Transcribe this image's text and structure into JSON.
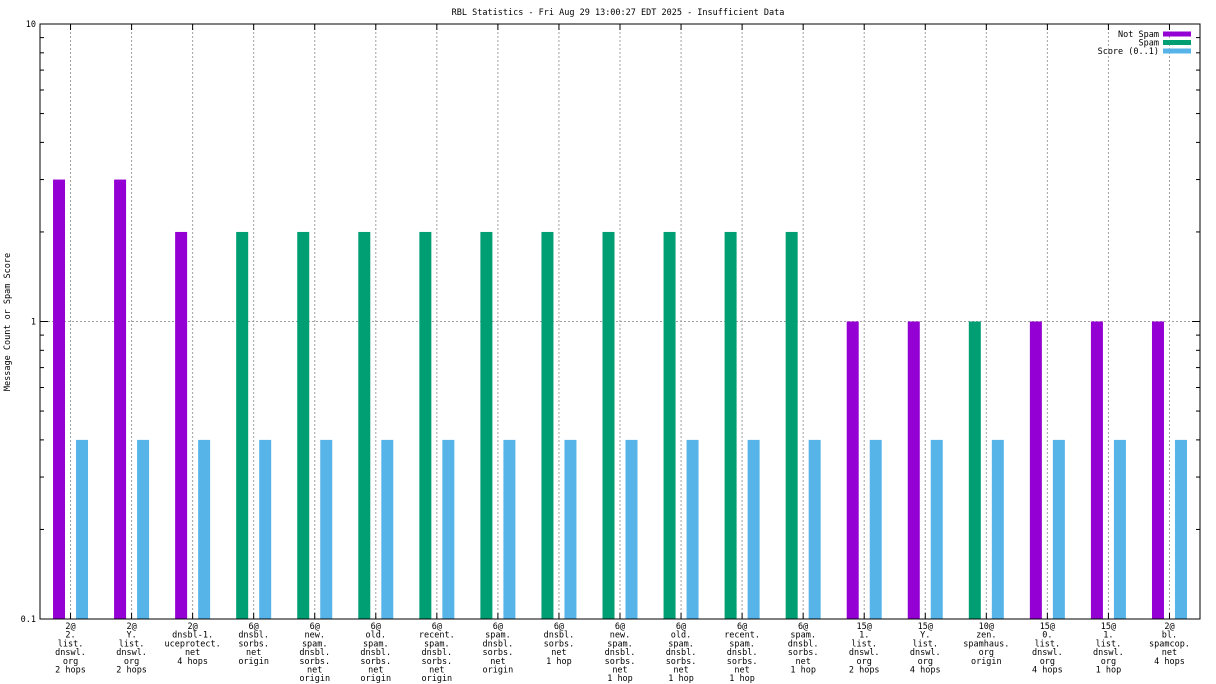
{
  "chart_data": {
    "type": "bar",
    "title": "RBL Statistics - Fri Aug 29 13:00:27 EDT 2025 - Insufficient Data",
    "xlabel": "",
    "ylabel": "Message Count or Spam Score",
    "yscale": "log",
    "ylim": [
      0.1,
      10
    ],
    "yticks": [
      "0.1",
      "1",
      "10"
    ],
    "grid": true,
    "legend_position": "top-right",
    "categories": [
      [
        "2@",
        "2.",
        "list.",
        "dnswl.",
        "org",
        "2 hops"
      ],
      [
        "2@",
        "Y.",
        "list.",
        "dnswl.",
        "org",
        "2 hops"
      ],
      [
        "2@",
        "dnsbl-1.",
        "uceprotect.",
        "net",
        "4 hops"
      ],
      [
        "6@",
        "dnsbl.",
        "sorbs.",
        "net",
        "origin"
      ],
      [
        "6@",
        "new.",
        "spam.",
        "dnsbl.",
        "sorbs.",
        "net",
        "origin"
      ],
      [
        "6@",
        "old.",
        "spam.",
        "dnsbl.",
        "sorbs.",
        "net",
        "origin"
      ],
      [
        "6@",
        "recent.",
        "spam.",
        "dnsbl.",
        "sorbs.",
        "net",
        "origin"
      ],
      [
        "6@",
        "spam.",
        "dnsbl.",
        "sorbs.",
        "net",
        "origin"
      ],
      [
        "6@",
        "dnsbl.",
        "sorbs.",
        "net",
        "1 hop"
      ],
      [
        "6@",
        "new.",
        "spam.",
        "dnsbl.",
        "sorbs.",
        "net",
        "1 hop"
      ],
      [
        "6@",
        "old.",
        "spam.",
        "dnsbl.",
        "sorbs.",
        "net",
        "1 hop"
      ],
      [
        "6@",
        "recent.",
        "spam.",
        "dnsbl.",
        "sorbs.",
        "net",
        "1 hop"
      ],
      [
        "6@",
        "spam.",
        "dnsbl.",
        "sorbs.",
        "net",
        "1 hop"
      ],
      [
        "15@",
        "1.",
        "list.",
        "dnswl.",
        "org",
        "2 hops"
      ],
      [
        "15@",
        "Y.",
        "list.",
        "dnswl.",
        "org",
        "4 hops"
      ],
      [
        "10@",
        "zen.",
        "spamhaus.",
        "org",
        "origin"
      ],
      [
        "15@",
        "0.",
        "list.",
        "dnswl.",
        "org",
        "4 hops"
      ],
      [
        "15@",
        "1.",
        "list.",
        "dnswl.",
        "org",
        "1 hop"
      ],
      [
        "2@",
        "bl.",
        "spamcop.",
        "net",
        "4 hops"
      ]
    ],
    "series": [
      {
        "name": "Not Spam",
        "color": "#9400d3",
        "values": [
          3,
          3,
          2,
          null,
          null,
          null,
          null,
          null,
          null,
          null,
          null,
          null,
          null,
          1,
          1,
          null,
          1,
          1,
          1
        ]
      },
      {
        "name": "Spam",
        "color": "#009e73",
        "values": [
          null,
          null,
          null,
          2,
          2,
          2,
          2,
          2,
          2,
          2,
          2,
          2,
          2,
          null,
          null,
          1,
          null,
          null,
          null
        ]
      },
      {
        "name": "Score (0..1)",
        "color": "#56b4e9",
        "values": [
          0.4,
          0.4,
          0.4,
          0.4,
          0.4,
          0.4,
          0.4,
          0.4,
          0.4,
          0.4,
          0.4,
          0.4,
          0.4,
          0.4,
          0.4,
          0.4,
          0.4,
          0.4,
          0.4
        ]
      }
    ]
  }
}
